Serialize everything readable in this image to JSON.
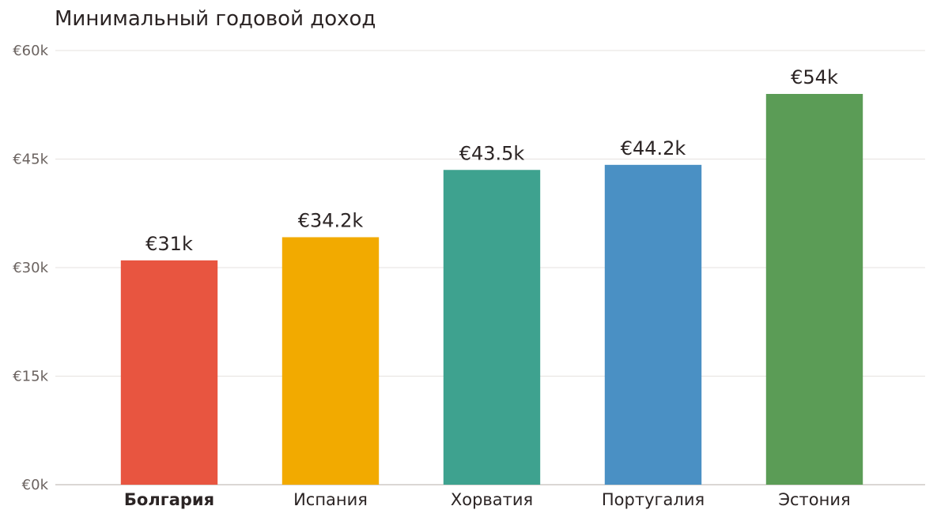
{
  "chart_data": {
    "type": "bar",
    "title": "Минимальный годовой доход",
    "xlabel": "",
    "ylabel": "",
    "ylim": [
      0,
      60000
    ],
    "y_ticks": [
      0,
      15000,
      30000,
      45000,
      60000
    ],
    "y_tick_labels": [
      "€0k",
      "€15k",
      "€30k",
      "€45k",
      "€60k"
    ],
    "grid": true,
    "categories": [
      "Болгария",
      "Испания",
      "Хорватия",
      "Португалия",
      "Эстония"
    ],
    "values": [
      31000,
      34200,
      43500,
      44200,
      54000
    ],
    "value_labels": [
      "€31k",
      "€34.2k",
      "€43.5k",
      "€44.2k",
      "€54k"
    ],
    "colors": [
      "#e85540",
      "#f2aa00",
      "#3ea28f",
      "#4a90c4",
      "#5b9c56"
    ],
    "highlighted_category": "Болгария"
  }
}
